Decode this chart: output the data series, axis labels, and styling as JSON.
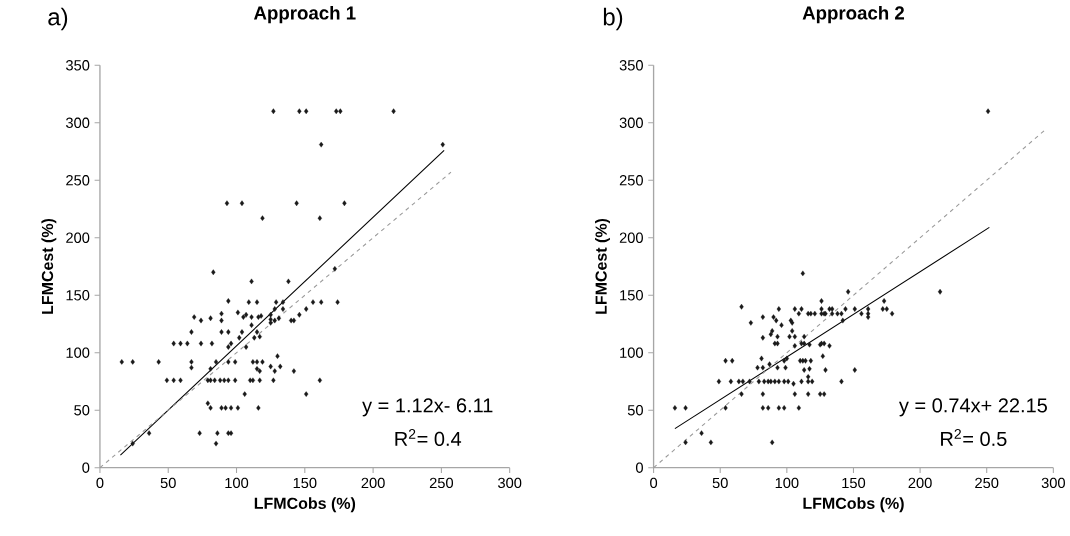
{
  "chart_data": [
    {
      "type": "scatter",
      "title": "Approach 1",
      "xlabel": "LFMCobs (%)",
      "ylabel": "LFMCest (%)",
      "annotations": [
        "a)",
        "y = 1.12x- 6.11",
        "R$^{2}$= 0.4"
      ],
      "xlim": [
        0,
        300
      ],
      "ylim": [
        0,
        350
      ],
      "xticks": [
        0,
        50,
        100,
        150,
        200,
        250,
        300
      ],
      "yticks": [
        0,
        50,
        100,
        150,
        200,
        250,
        300,
        350
      ],
      "series": [
        {
          "color": "#1a1a1a",
          "marker": "diamond",
          "x": [
            127,
            146,
            151,
            173,
            176,
            215,
            162,
            251,
            93,
            104,
            144,
            179,
            119,
            161,
            83,
            111,
            138,
            172,
            94,
            109,
            115,
            129,
            134,
            156,
            162,
            174,
            101,
            107,
            105,
            111,
            116,
            118,
            125,
            128,
            134,
            151,
            146,
            142,
            140,
            131,
            125,
            125,
            128,
            89,
            89,
            69,
            74,
            81,
            67,
            89,
            94,
            104,
            115,
            111,
            102,
            113,
            117,
            94,
            96,
            107,
            54,
            59,
            64,
            74,
            82,
            16,
            24,
            43,
            67,
            67,
            81,
            85,
            94,
            99,
            112,
            115,
            119,
            115,
            117,
            125,
            130,
            132,
            128,
            142,
            49,
            54,
            59,
            79,
            81,
            84,
            88,
            91,
            94,
            99,
            110,
            112,
            117,
            127,
            161,
            106,
            151,
            79,
            81,
            89,
            92,
            96,
            101,
            116,
            73,
            86,
            94,
            96,
            85,
            36,
            24
          ],
          "values": [
            310,
            310,
            310,
            310,
            310,
            310,
            281,
            281,
            230,
            230,
            230,
            230,
            217,
            217,
            170,
            162,
            162,
            173,
            145,
            144,
            144,
            144,
            144,
            144,
            144,
            144,
            135,
            133,
            131,
            131,
            131,
            132,
            133,
            138,
            138,
            138,
            133,
            128,
            128,
            130,
            129,
            126,
            128,
            134,
            128,
            131,
            128,
            130,
            118,
            118,
            118,
            118,
            118,
            124,
            113,
            113,
            114,
            105,
            108,
            105,
            108,
            108,
            108,
            108,
            108,
            92,
            92,
            92,
            92,
            87,
            86,
            92,
            92,
            92,
            92,
            92,
            92,
            86,
            84,
            88,
            97,
            88,
            84,
            84,
            76,
            76,
            76,
            76,
            76,
            76,
            76,
            76,
            76,
            76,
            76,
            76,
            76,
            76,
            76,
            64,
            64,
            56,
            52,
            52,
            52,
            52,
            52,
            52,
            30,
            30,
            30,
            30,
            21,
            30,
            21
          ]
        },
        {
          "type": "line",
          "color": "#000000",
          "marker": "none",
          "line_style": "solid",
          "x": [
            15,
            252
          ],
          "values": [
            11,
            276
          ]
        },
        {
          "type": "line",
          "color": "#999999",
          "marker": "none",
          "line_style": "dashed",
          "x": [
            0,
            257
          ],
          "values": [
            0,
            257
          ]
        }
      ]
    },
    {
      "type": "scatter",
      "title": "Approach 2",
      "xlabel": "LFMCobs (%)",
      "ylabel": "LFMCest (%)",
      "annotations": [
        "b)",
        "y = 0.74x+ 22.15",
        "R$^{2}$= 0.5"
      ],
      "xlim": [
        0,
        300
      ],
      "ylim": [
        0,
        350
      ],
      "xticks": [
        0,
        50,
        100,
        150,
        200,
        250,
        300
      ],
      "yticks": [
        0,
        50,
        100,
        150,
        200,
        250,
        300,
        350
      ],
      "series": [
        {
          "color": "#1a1a1a",
          "marker": "diamond",
          "x": [
            251,
            112,
            146,
            215,
            66,
            106,
            111,
            126,
            132,
            134,
            144,
            151,
            161,
            172,
            175,
            94,
            126,
            173,
            109,
            116,
            118,
            121,
            126,
            128,
            129,
            134,
            138,
            141,
            156,
            161,
            179,
            82,
            90,
            92,
            103,
            73,
            96,
            104,
            142,
            161,
            89,
            88,
            93,
            102,
            106,
            82,
            104,
            113,
            91,
            93,
            111,
            113,
            117,
            125,
            126,
            128,
            132,
            106,
            100,
            98,
            81,
            127,
            54,
            59,
            110,
            112,
            114,
            118,
            78,
            82,
            87,
            93,
            99,
            113,
            117,
            129,
            151,
            116,
            49,
            58,
            64,
            67,
            72,
            79,
            83,
            86,
            88,
            91,
            94,
            98,
            101,
            111,
            116,
            119,
            141,
            105,
            66,
            82,
            106,
            116,
            125,
            128,
            16,
            24,
            54,
            82,
            86,
            94,
            98,
            109,
            36,
            24,
            43,
            89
          ],
          "values": [
            310,
            169,
            153,
            153,
            140,
            138,
            138,
            138,
            138,
            138,
            138,
            138,
            138,
            138,
            138,
            138,
            145,
            145,
            134,
            134,
            134,
            134,
            134,
            134,
            134,
            134,
            134,
            134,
            134,
            134,
            134,
            131,
            131,
            128,
            128,
            126,
            124,
            126,
            128,
            131,
            119,
            116,
            114,
            114,
            114,
            113,
            119,
            114,
            108,
            108,
            108,
            108,
            107,
            107,
            108,
            108,
            106,
            106,
            95,
            93,
            95,
            97,
            93,
            93,
            93,
            93,
            93,
            93,
            87,
            87,
            90,
            87,
            87,
            85,
            86,
            85,
            85,
            79,
            75,
            75,
            75,
            75,
            75,
            75,
            75,
            75,
            75,
            75,
            75,
            75,
            75,
            75,
            75,
            75,
            75,
            73,
            64,
            64,
            64,
            64,
            64,
            64,
            52,
            52,
            52,
            52,
            52,
            52,
            52,
            52,
            30,
            22,
            22,
            22
          ]
        },
        {
          "type": "line",
          "color": "#000000",
          "marker": "none",
          "line_style": "solid",
          "x": [
            16,
            252
          ],
          "values": [
            34,
            209
          ]
        },
        {
          "type": "line",
          "color": "#999999",
          "marker": "none",
          "line_style": "dashed",
          "x": [
            0,
            295
          ],
          "values": [
            0,
            295
          ]
        }
      ]
    }
  ]
}
